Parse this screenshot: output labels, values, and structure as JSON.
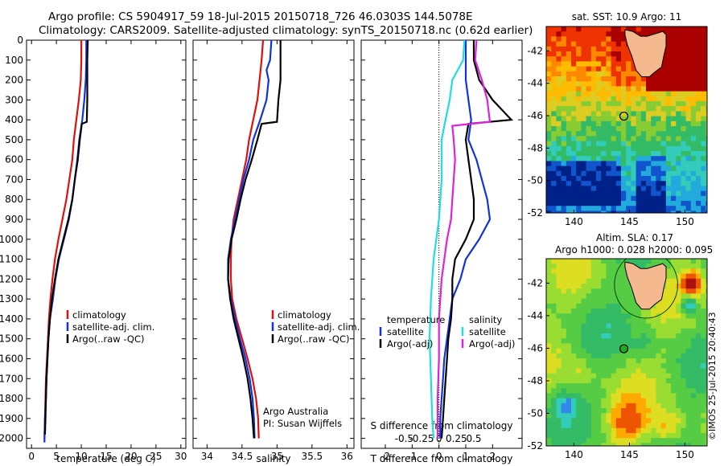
{
  "header": {
    "line1": "Argo profile: CS 5904917_59 18-Jul-2015 20150718_726 46.0303S 144.5078E",
    "line2": "Climatology: CARS2009. Satellite-adjusted climatology: synTS_20150718.nc (0.62d earlier)"
  },
  "side_label": "©IMOS 25-Jul-2015 20:40:43",
  "colors": {
    "climatology": "#dd1111",
    "satellite": "#1133dd",
    "argo": "#000000",
    "sat_sal": "#22dddd",
    "argo_sal": "#dd22dd",
    "land": "#f4b98e"
  },
  "chart_data": [
    {
      "type": "line",
      "id": "temperature",
      "xlabel": "temperature (deg C)",
      "xlim": [
        -1,
        31
      ],
      "ylim": [
        0,
        2050
      ],
      "xticks": [
        0,
        5,
        10,
        15,
        20,
        25,
        30
      ],
      "yticks": [
        0,
        100,
        200,
        300,
        400,
        500,
        600,
        700,
        800,
        900,
        1000,
        1100,
        1200,
        1300,
        1400,
        1500,
        1600,
        1700,
        1800,
        1900,
        2000
      ],
      "legend": [
        "climatology",
        "satellite-adj. clim.",
        "Argo(..raw -QC)"
      ],
      "series": [
        {
          "name": "climatology",
          "color": "#dd1111",
          "points": [
            [
              10,
              0
            ],
            [
              10,
              100
            ],
            [
              9.9,
              200
            ],
            [
              9.5,
              300
            ],
            [
              9,
              400
            ],
            [
              8.5,
              500
            ],
            [
              8.2,
              600
            ],
            [
              7.6,
              700
            ],
            [
              7,
              800
            ],
            [
              6.2,
              900
            ],
            [
              5.4,
              1000
            ],
            [
              4.7,
              1100
            ],
            [
              4.2,
              1200
            ],
            [
              3.8,
              1300
            ],
            [
              3.5,
              1400
            ],
            [
              3.3,
              1500
            ],
            [
              3.1,
              1600
            ],
            [
              2.9,
              1700
            ],
            [
              2.8,
              1800
            ],
            [
              2.7,
              1900
            ],
            [
              2.6,
              2000
            ]
          ]
        },
        {
          "name": "satellite-adj. clim.",
          "color": "#1133dd",
          "points": [
            [
              11,
              0
            ],
            [
              11,
              100
            ],
            [
              10.9,
              200
            ],
            [
              10.6,
              300
            ],
            [
              10.2,
              400
            ],
            [
              9.6,
              500
            ],
            [
              9.2,
              600
            ],
            [
              8.7,
              700
            ],
            [
              8.2,
              800
            ],
            [
              7.5,
              900
            ],
            [
              6.5,
              1000
            ],
            [
              5.5,
              1100
            ],
            [
              4.8,
              1200
            ],
            [
              4.3,
              1300
            ],
            [
              3.7,
              1400
            ],
            [
              3.4,
              1500
            ],
            [
              3.2,
              1600
            ],
            [
              3,
              1700
            ],
            [
              2.9,
              1800
            ],
            [
              2.7,
              1900
            ],
            [
              2.6,
              2000
            ],
            [
              2.6,
              2020
            ]
          ]
        },
        {
          "name": "Argo(..raw -QC)",
          "color": "#000000",
          "points": [
            [
              11.3,
              0
            ],
            [
              11.2,
              100
            ],
            [
              11.2,
              200
            ],
            [
              11.2,
              300
            ],
            [
              11.1,
              410
            ],
            [
              10.1,
              420
            ],
            [
              9.7,
              500
            ],
            [
              9.3,
              600
            ],
            [
              8.7,
              700
            ],
            [
              8.2,
              800
            ],
            [
              7.4,
              900
            ],
            [
              6.4,
              1000
            ],
            [
              5.4,
              1100
            ],
            [
              4.7,
              1200
            ],
            [
              4.1,
              1300
            ],
            [
              3.7,
              1400
            ],
            [
              3.4,
              1500
            ],
            [
              3.2,
              1600
            ],
            [
              3,
              1700
            ],
            [
              2.9,
              1800
            ],
            [
              2.8,
              1900
            ],
            [
              2.7,
              1980
            ]
          ]
        }
      ]
    },
    {
      "type": "line",
      "id": "salinity",
      "xlabel": "salinity",
      "xlim": [
        33.8,
        36.1
      ],
      "ylim": [
        0,
        2050
      ],
      "xticks": [
        34,
        34.5,
        35,
        35.5,
        36
      ],
      "legend": [
        "climatology",
        "satellite-adj. clim.",
        "Argo(..raw -QC)"
      ],
      "annotation": [
        "Argo Australia",
        "PI: Susan Wijffels"
      ],
      "series": [
        {
          "name": "climatology",
          "color": "#dd1111",
          "points": [
            [
              34.8,
              0
            ],
            [
              34.78,
              100
            ],
            [
              34.75,
              200
            ],
            [
              34.72,
              300
            ],
            [
              34.66,
              400
            ],
            [
              34.6,
              500
            ],
            [
              34.56,
              600
            ],
            [
              34.5,
              700
            ],
            [
              34.44,
              800
            ],
            [
              34.38,
              900
            ],
            [
              34.35,
              1000
            ],
            [
              34.34,
              1100
            ],
            [
              34.34,
              1200
            ],
            [
              34.36,
              1300
            ],
            [
              34.42,
              1400
            ],
            [
              34.5,
              1500
            ],
            [
              34.58,
              1600
            ],
            [
              34.65,
              1700
            ],
            [
              34.7,
              1800
            ],
            [
              34.73,
              1900
            ],
            [
              34.74,
              2000
            ]
          ]
        },
        {
          "name": "satellite-adj. clim.",
          "color": "#1133dd",
          "points": [
            [
              34.92,
              0
            ],
            [
              34.9,
              100
            ],
            [
              34.85,
              150
            ],
            [
              34.88,
              200
            ],
            [
              34.85,
              300
            ],
            [
              34.76,
              400
            ],
            [
              34.66,
              500
            ],
            [
              34.6,
              600
            ],
            [
              34.52,
              700
            ],
            [
              34.46,
              800
            ],
            [
              34.4,
              900
            ],
            [
              34.34,
              1000
            ],
            [
              34.3,
              1100
            ],
            [
              34.3,
              1200
            ],
            [
              34.34,
              1300
            ],
            [
              34.4,
              1400
            ],
            [
              34.47,
              1500
            ],
            [
              34.55,
              1600
            ],
            [
              34.61,
              1700
            ],
            [
              34.65,
              1800
            ],
            [
              34.67,
              1900
            ],
            [
              34.68,
              2000
            ]
          ]
        },
        {
          "name": "Argo(..raw -QC)",
          "color": "#000000",
          "points": [
            [
              35.05,
              0
            ],
            [
              35.05,
              100
            ],
            [
              35.05,
              200
            ],
            [
              35.02,
              300
            ],
            [
              35,
              410
            ],
            [
              34.78,
              420
            ],
            [
              34.72,
              500
            ],
            [
              34.64,
              600
            ],
            [
              34.55,
              700
            ],
            [
              34.48,
              800
            ],
            [
              34.42,
              900
            ],
            [
              34.35,
              1000
            ],
            [
              34.31,
              1100
            ],
            [
              34.3,
              1200
            ],
            [
              34.33,
              1300
            ],
            [
              34.38,
              1400
            ],
            [
              34.45,
              1500
            ],
            [
              34.52,
              1600
            ],
            [
              34.58,
              1700
            ],
            [
              34.62,
              1800
            ],
            [
              34.65,
              1900
            ],
            [
              34.67,
              2000
            ]
          ]
        }
      ]
    },
    {
      "type": "line",
      "id": "difference",
      "xlabel_top": "S difference from climatology",
      "xlabel": "T difference from climatology",
      "xlim": [
        -2.9,
        3.1
      ],
      "ylim": [
        0,
        2050
      ],
      "xticks": [
        -2,
        -1,
        0,
        1,
        2
      ],
      "top_tick_labels": [
        "-0.5",
        "-0.25",
        "0",
        "0.25",
        "0.5"
      ],
      "legend_titles": [
        "temperature",
        "salinity"
      ],
      "legend": [
        "satellite",
        "Argo(-adj)",
        "satellite",
        "Argo(-adj)"
      ],
      "series": [
        {
          "name": "satellite",
          "color": "#1133dd",
          "points": [
            [
              1,
              0
            ],
            [
              1,
              100
            ],
            [
              1,
              200
            ],
            [
              1.1,
              300
            ],
            [
              1.2,
              400
            ],
            [
              1.1,
              500
            ],
            [
              1.4,
              600
            ],
            [
              1.6,
              700
            ],
            [
              1.8,
              800
            ],
            [
              1.9,
              900
            ],
            [
              1.5,
              1000
            ],
            [
              1,
              1100
            ],
            [
              0.8,
              1200
            ],
            [
              0.5,
              1300
            ],
            [
              0.4,
              1400
            ],
            [
              0.3,
              1500
            ],
            [
              0.2,
              1600
            ],
            [
              0.15,
              1700
            ],
            [
              0.1,
              1800
            ],
            [
              0.05,
              1900
            ],
            [
              0.05,
              2000
            ]
          ]
        },
        {
          "name": "Argo(-adj)",
          "color": "#000000",
          "points": [
            [
              1.3,
              0
            ],
            [
              1.3,
              100
            ],
            [
              1.5,
              200
            ],
            [
              2,
              300
            ],
            [
              2.7,
              400
            ],
            [
              1.1,
              420
            ],
            [
              1,
              500
            ],
            [
              1.1,
              600
            ],
            [
              1.2,
              700
            ],
            [
              1.3,
              800
            ],
            [
              1.3,
              900
            ],
            [
              1,
              1000
            ],
            [
              0.6,
              1100
            ],
            [
              0.5,
              1200
            ],
            [
              0.5,
              1300
            ],
            [
              0.45,
              1400
            ],
            [
              0.35,
              1500
            ],
            [
              0.3,
              1600
            ],
            [
              0.25,
              1700
            ],
            [
              0.2,
              1800
            ],
            [
              0.15,
              1900
            ],
            [
              0.1,
              2000
            ]
          ]
        },
        {
          "name": "satellite",
          "color": "#22dddd",
          "points": [
            [
              0.95,
              0
            ],
            [
              0.9,
              100
            ],
            [
              0.5,
              200
            ],
            [
              0.4,
              300
            ],
            [
              0.2,
              430
            ],
            [
              0.1,
              500
            ],
            [
              0.1,
              700
            ],
            [
              0,
              900
            ],
            [
              -0.2,
              1100
            ],
            [
              -0.3,
              1300
            ],
            [
              -0.35,
              1500
            ],
            [
              -0.3,
              1700
            ],
            [
              -0.25,
              1900
            ],
            [
              -0.2,
              2000
            ]
          ]
        },
        {
          "name": "Argo(-adj)",
          "color": "#dd22dd",
          "points": [
            [
              1.4,
              0
            ],
            [
              1.35,
              100
            ],
            [
              1.6,
              200
            ],
            [
              1.8,
              300
            ],
            [
              1.9,
              410
            ],
            [
              0.5,
              430
            ],
            [
              0.55,
              500
            ],
            [
              0.6,
              600
            ],
            [
              0.55,
              700
            ],
            [
              0.5,
              800
            ],
            [
              0.45,
              900
            ],
            [
              0.3,
              1000
            ],
            [
              0.2,
              1100
            ],
            [
              0.1,
              1200
            ],
            [
              0.05,
              1300
            ],
            [
              0,
              1400
            ],
            [
              0,
              1600
            ],
            [
              -0.05,
              1800
            ],
            [
              -0.05,
              2000
            ]
          ]
        }
      ]
    },
    {
      "type": "heatmap",
      "id": "sst-map",
      "title": "sat. SST: 10.9 Argo: 11",
      "xlim": [
        137.5,
        152
      ],
      "ylim": [
        -52,
        -40.5
      ],
      "xticks": [
        140,
        145,
        150
      ],
      "yticks": [
        -42,
        -44,
        -46,
        -48,
        -50,
        -52
      ],
      "marker": {
        "lon": 144.5,
        "lat": -46.03
      }
    },
    {
      "type": "heatmap",
      "id": "sla-map",
      "title": "Altim. SLA: 0.17",
      "subtitle": "Argo h1000: 0.028 h2000: 0.095",
      "xlim": [
        137.5,
        152
      ],
      "ylim": [
        -52,
        -40.5
      ],
      "xticks": [
        140,
        145,
        150
      ],
      "yticks": [
        -42,
        -44,
        -46,
        -48,
        -50,
        -52
      ],
      "marker": {
        "lon": 144.5,
        "lat": -46.03
      }
    }
  ]
}
